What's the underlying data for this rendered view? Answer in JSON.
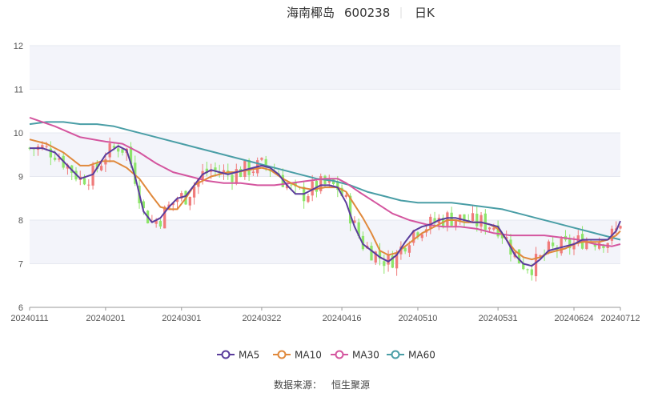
{
  "header": {
    "name": "海南椰岛",
    "code": "600238",
    "period": "日K"
  },
  "source_label": "数据来源：",
  "source_value": "恒生聚源",
  "chart_data": {
    "type": "candlestick",
    "y_ticks": [
      6,
      7,
      8,
      9,
      10,
      11,
      12
    ],
    "ylim": [
      6,
      12
    ],
    "x_ticks": [
      "20240111",
      "20240201",
      "20240301",
      "20240322",
      "20240416",
      "20240510",
      "20240531",
      "20240624",
      "20240712"
    ],
    "colors": {
      "up": "#f07b7b",
      "down": "#8de56a",
      "ma5": "#5b3d9c",
      "ma10": "#e0893c",
      "ma30": "#d4569f",
      "ma60": "#4a9ea6"
    },
    "legend": [
      {
        "name": "MA5",
        "color": "#5b3d9c"
      },
      {
        "name": "MA10",
        "color": "#e0893c"
      },
      {
        "name": "MA30",
        "color": "#d4569f"
      },
      {
        "name": "MA60",
        "color": "#4a9ea6"
      }
    ],
    "ma5": [
      [
        0,
        9.65
      ],
      [
        3,
        9.65
      ],
      [
        6,
        9.55
      ],
      [
        9,
        9.25
      ],
      [
        12,
        8.95
      ],
      [
        15,
        9.05
      ],
      [
        18,
        9.5
      ],
      [
        21,
        9.7
      ],
      [
        23,
        9.6
      ],
      [
        25,
        9.0
      ],
      [
        27,
        8.2
      ],
      [
        29,
        7.95
      ],
      [
        31,
        8.05
      ],
      [
        33,
        8.3
      ],
      [
        35,
        8.5
      ],
      [
        37,
        8.55
      ],
      [
        39,
        8.8
      ],
      [
        41,
        9.05
      ],
      [
        43,
        9.15
      ],
      [
        45,
        9.1
      ],
      [
        47,
        9.05
      ],
      [
        49,
        9.1
      ],
      [
        51,
        9.15
      ],
      [
        53,
        9.2
      ],
      [
        55,
        9.25
      ],
      [
        57,
        9.2
      ],
      [
        59,
        9.05
      ],
      [
        61,
        8.8
      ],
      [
        63,
        8.6
      ],
      [
        65,
        8.6
      ],
      [
        67,
        8.7
      ],
      [
        69,
        8.8
      ],
      [
        71,
        8.8
      ],
      [
        73,
        8.75
      ],
      [
        75,
        8.4
      ],
      [
        77,
        7.85
      ],
      [
        79,
        7.45
      ],
      [
        81,
        7.3
      ],
      [
        83,
        7.15
      ],
      [
        85,
        7.05
      ],
      [
        87,
        7.2
      ],
      [
        89,
        7.5
      ],
      [
        91,
        7.75
      ],
      [
        93,
        7.85
      ],
      [
        95,
        7.9
      ],
      [
        97,
        8.0
      ],
      [
        99,
        8.05
      ],
      [
        101,
        8.05
      ],
      [
        103,
        8.0
      ],
      [
        105,
        7.95
      ],
      [
        107,
        7.95
      ],
      [
        109,
        7.9
      ],
      [
        111,
        7.85
      ],
      [
        113,
        7.55
      ],
      [
        115,
        7.2
      ],
      [
        117,
        7.0
      ],
      [
        119,
        6.95
      ],
      [
        121,
        7.1
      ],
      [
        123,
        7.3
      ],
      [
        125,
        7.35
      ],
      [
        127,
        7.4
      ],
      [
        129,
        7.45
      ],
      [
        131,
        7.55
      ],
      [
        133,
        7.55
      ],
      [
        135,
        7.55
      ],
      [
        137,
        7.55
      ],
      [
        139,
        7.75
      ],
      [
        140,
        7.98
      ]
    ],
    "ma10": [
      [
        0,
        9.85
      ],
      [
        4,
        9.75
      ],
      [
        8,
        9.55
      ],
      [
        12,
        9.25
      ],
      [
        14,
        9.25
      ],
      [
        17,
        9.35
      ],
      [
        20,
        9.35
      ],
      [
        23,
        9.2
      ],
      [
        26,
        8.95
      ],
      [
        29,
        8.55
      ],
      [
        31,
        8.3
      ],
      [
        33,
        8.25
      ],
      [
        35,
        8.25
      ],
      [
        37,
        8.5
      ],
      [
        39,
        8.8
      ],
      [
        41,
        8.9
      ],
      [
        43,
        9.0
      ],
      [
        45,
        9.05
      ],
      [
        47,
        9.1
      ],
      [
        49,
        9.1
      ],
      [
        52,
        9.15
      ],
      [
        55,
        9.2
      ],
      [
        57,
        9.15
      ],
      [
        60,
        8.95
      ],
      [
        62,
        8.85
      ],
      [
        64,
        8.75
      ],
      [
        67,
        8.7
      ],
      [
        70,
        8.75
      ],
      [
        73,
        8.75
      ],
      [
        75,
        8.65
      ],
      [
        77,
        8.35
      ],
      [
        79,
        8.05
      ],
      [
        81,
        7.7
      ],
      [
        83,
        7.3
      ],
      [
        85,
        7.2
      ],
      [
        87,
        7.25
      ],
      [
        89,
        7.4
      ],
      [
        91,
        7.55
      ],
      [
        93,
        7.7
      ],
      [
        95,
        7.8
      ],
      [
        97,
        7.9
      ],
      [
        99,
        8.0
      ],
      [
        101,
        8.0
      ],
      [
        103,
        7.95
      ],
      [
        105,
        7.95
      ],
      [
        107,
        7.95
      ],
      [
        109,
        7.9
      ],
      [
        111,
        7.8
      ],
      [
        113,
        7.55
      ],
      [
        115,
        7.3
      ],
      [
        117,
        7.15
      ],
      [
        119,
        7.1
      ],
      [
        121,
        7.15
      ],
      [
        123,
        7.25
      ],
      [
        125,
        7.3
      ],
      [
        127,
        7.35
      ],
      [
        129,
        7.45
      ],
      [
        131,
        7.5
      ],
      [
        133,
        7.5
      ],
      [
        135,
        7.5
      ],
      [
        137,
        7.55
      ],
      [
        139,
        7.65
      ],
      [
        140,
        7.75
      ]
    ],
    "ma30": [
      [
        0,
        10.35
      ],
      [
        6,
        10.15
      ],
      [
        12,
        9.9
      ],
      [
        18,
        9.8
      ],
      [
        22,
        9.75
      ],
      [
        26,
        9.55
      ],
      [
        30,
        9.3
      ],
      [
        34,
        9.1
      ],
      [
        38,
        9.0
      ],
      [
        42,
        8.9
      ],
      [
        46,
        8.85
      ],
      [
        50,
        8.85
      ],
      [
        54,
        8.8
      ],
      [
        58,
        8.8
      ],
      [
        62,
        8.85
      ],
      [
        66,
        8.9
      ],
      [
        70,
        8.95
      ],
      [
        73,
        8.95
      ],
      [
        75,
        8.85
      ],
      [
        78,
        8.65
      ],
      [
        82,
        8.4
      ],
      [
        86,
        8.15
      ],
      [
        90,
        8.0
      ],
      [
        94,
        7.9
      ],
      [
        98,
        7.85
      ],
      [
        102,
        7.85
      ],
      [
        106,
        7.8
      ],
      [
        110,
        7.7
      ],
      [
        114,
        7.65
      ],
      [
        118,
        7.65
      ],
      [
        122,
        7.65
      ],
      [
        126,
        7.6
      ],
      [
        130,
        7.55
      ],
      [
        134,
        7.45
      ],
      [
        138,
        7.4
      ],
      [
        140,
        7.45
      ]
    ],
    "ma60": [
      [
        0,
        10.2
      ],
      [
        4,
        10.25
      ],
      [
        8,
        10.25
      ],
      [
        12,
        10.2
      ],
      [
        16,
        10.2
      ],
      [
        20,
        10.15
      ],
      [
        24,
        10.05
      ],
      [
        28,
        9.95
      ],
      [
        32,
        9.85
      ],
      [
        36,
        9.75
      ],
      [
        40,
        9.65
      ],
      [
        44,
        9.55
      ],
      [
        48,
        9.45
      ],
      [
        52,
        9.35
      ],
      [
        56,
        9.25
      ],
      [
        60,
        9.15
      ],
      [
        64,
        9.05
      ],
      [
        68,
        8.95
      ],
      [
        72,
        8.9
      ],
      [
        76,
        8.8
      ],
      [
        80,
        8.65
      ],
      [
        84,
        8.55
      ],
      [
        88,
        8.45
      ],
      [
        92,
        8.4
      ],
      [
        96,
        8.4
      ],
      [
        100,
        8.4
      ],
      [
        104,
        8.35
      ],
      [
        108,
        8.3
      ],
      [
        112,
        8.25
      ],
      [
        116,
        8.15
      ],
      [
        120,
        8.05
      ],
      [
        124,
        7.95
      ],
      [
        128,
        7.85
      ],
      [
        132,
        7.75
      ],
      [
        136,
        7.65
      ],
      [
        140,
        7.55
      ]
    ]
  }
}
